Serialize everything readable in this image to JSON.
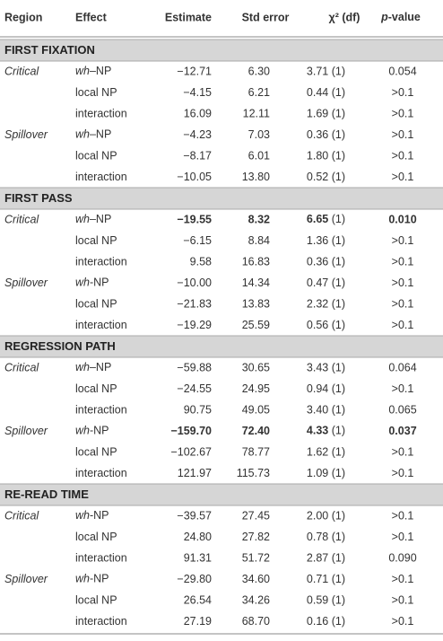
{
  "header": [
    "Region",
    "Effect",
    "Estimate",
    "Std error",
    "χ² (df)",
    "p-value"
  ],
  "sections": [
    {
      "title": "FIRST FIXATION",
      "groups": [
        {
          "region": "Critical",
          "rows": [
            [
              "wh–NP",
              "−12.71",
              "6.30",
              "3.71 (1)",
              "0.054"
            ],
            [
              "local NP",
              "−4.15",
              "6.21",
              "0.44 (1)",
              ">0.1"
            ],
            [
              "interaction",
              "16.09",
              "12.11",
              "1.69 (1)",
              ">0.1"
            ]
          ]
        },
        {
          "region": "Spillover",
          "rows": [
            [
              "wh–NP",
              "−4.23",
              "7.03",
              "0.36 (1)",
              ">0.1"
            ],
            [
              "local NP",
              "−8.17",
              "6.01",
              "1.80 (1)",
              ">0.1"
            ],
            [
              "interaction",
              "−10.05",
              "13.80",
              "0.52 (1)",
              ">0.1"
            ]
          ]
        }
      ]
    },
    {
      "title": "FIRST PASS",
      "groups": [
        {
          "region": "Critical",
          "bold_row": 0,
          "rows": [
            [
              "wh–NP",
              "−19.55",
              "8.32",
              "6.65 (1)",
              "0.010"
            ],
            [
              "local NP",
              "−6.15",
              "8.84",
              "1.36 (1)",
              ">0.1"
            ],
            [
              "interaction",
              "9.58",
              "16.83",
              "0.36 (1)",
              ">0.1"
            ]
          ]
        },
        {
          "region": "Spillover",
          "rows": [
            [
              "wh-NP",
              "−10.00",
              "14.34",
              "0.47 (1)",
              ">0.1"
            ],
            [
              "local NP",
              "−21.83",
              "13.83",
              "2.32 (1)",
              ">0.1"
            ],
            [
              "interaction",
              "−19.29",
              "25.59",
              "0.56 (1)",
              ">0.1"
            ]
          ]
        }
      ]
    },
    {
      "title": "REGRESSION PATH",
      "groups": [
        {
          "region": "Critical",
          "rows": [
            [
              "wh–NP",
              "−59.88",
              "30.65",
              "3.43 (1)",
              "0.064"
            ],
            [
              "local NP",
              "−24.55",
              "24.95",
              "0.94 (1)",
              ">0.1"
            ],
            [
              "interaction",
              "90.75",
              "49.05",
              "3.40 (1)",
              "0.065"
            ]
          ]
        },
        {
          "region": "Spillover",
          "bold_row": 0,
          "rows": [
            [
              "wh-NP",
              "−159.70",
              "72.40",
              "4.33 (1)",
              "0.037"
            ],
            [
              "local NP",
              "−102.67",
              "78.77",
              "1.62 (1)",
              ">0.1"
            ],
            [
              "interaction",
              "121.97",
              "115.73",
              "1.09 (1)",
              ">0.1"
            ]
          ]
        }
      ]
    },
    {
      "title": "RE-READ TIME",
      "groups": [
        {
          "region": "Critical",
          "rows": [
            [
              "wh-NP",
              "−39.57",
              "27.45",
              "2.00 (1)",
              ">0.1"
            ],
            [
              "local NP",
              "24.80",
              "27.82",
              "0.78 (1)",
              ">0.1"
            ],
            [
              "interaction",
              "91.31",
              "51.72",
              "2.87 (1)",
              "0.090"
            ]
          ]
        },
        {
          "region": "Spillover",
          "rows": [
            [
              "wh-NP",
              "−29.80",
              "34.60",
              "0.71 (1)",
              ">0.1"
            ],
            [
              "local NP",
              "26.54",
              "34.26",
              "0.59 (1)",
              ">0.1"
            ],
            [
              "interaction",
              "27.19",
              "68.70",
              "0.16 (1)",
              ">0.1"
            ]
          ]
        }
      ]
    }
  ]
}
